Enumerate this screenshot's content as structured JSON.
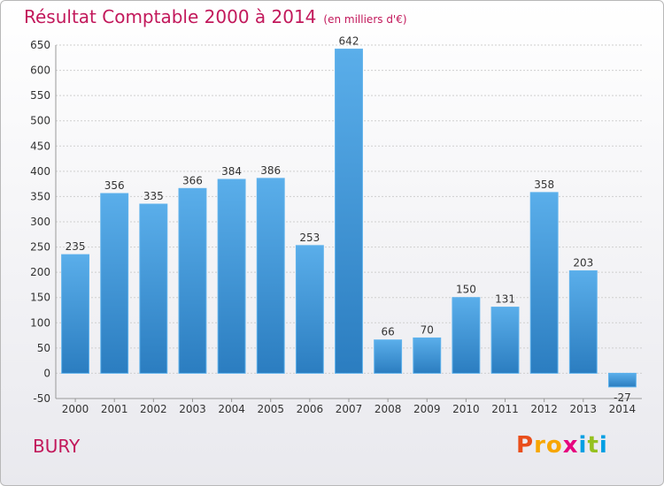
{
  "chart_data": {
    "type": "bar",
    "title": "Résultat Comptable 2000 à 2014",
    "subtitle": "(en milliers d'€)",
    "categories": [
      "2000",
      "2001",
      "2002",
      "2003",
      "2004",
      "2005",
      "2006",
      "2007",
      "2008",
      "2009",
      "2010",
      "2011",
      "2012",
      "2013",
      "2014"
    ],
    "values": [
      235,
      356,
      335,
      366,
      384,
      386,
      253,
      642,
      66,
      70,
      150,
      131,
      358,
      203,
      -27
    ],
    "ylim": [
      -50,
      650
    ],
    "yticks": [
      -50,
      0,
      50,
      100,
      150,
      200,
      250,
      300,
      350,
      400,
      450,
      500,
      550,
      600,
      650
    ],
    "xlabel": "",
    "ylabel": "",
    "grid": true,
    "bar_color": "#4aa3e3"
  },
  "place": "BURY",
  "logo": {
    "letters": [
      "P",
      "r",
      "o",
      "x",
      "i",
      "t",
      "i"
    ],
    "colors": [
      "#e94e1b",
      "#f7a600",
      "#f7a600",
      "#e6007e",
      "#009fe3",
      "#95c11f",
      "#009fe3"
    ]
  }
}
